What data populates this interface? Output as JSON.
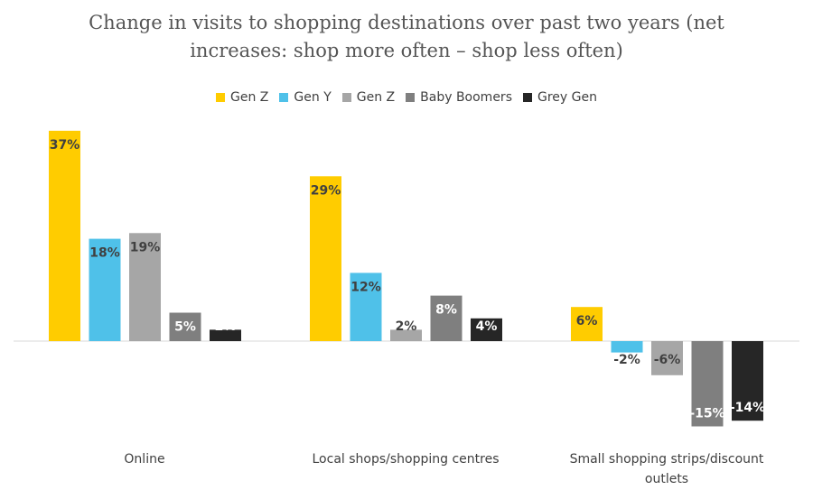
{
  "chart_data": {
    "type": "bar",
    "title": "Change in visits to shopping destinations over past two years (net increases: shop more often – shop less often)",
    "categories": [
      [
        "Online"
      ],
      [
        "Local shops/shopping centres"
      ],
      [
        "Small shopping strips/discount",
        "outlets"
      ]
    ],
    "series": [
      {
        "name": "Gen Z",
        "color": "#FFCC00",
        "values": [
          37,
          29,
          6
        ]
      },
      {
        "name": "Gen Y",
        "color": "#4FC1E9",
        "values": [
          18,
          12,
          -2
        ]
      },
      {
        "name": "Gen Z",
        "color": "#A6A6A6",
        "values": [
          19,
          2,
          -6
        ]
      },
      {
        "name": "Baby Boomers",
        "color": "#7F7F7F",
        "values": [
          5,
          8,
          -15
        ]
      },
      {
        "name": "Grey Gen",
        "color": "#262626",
        "values": [
          2,
          4,
          -14
        ]
      }
    ],
    "value_suffix": "%",
    "legend_position": "top",
    "grid": false
  }
}
